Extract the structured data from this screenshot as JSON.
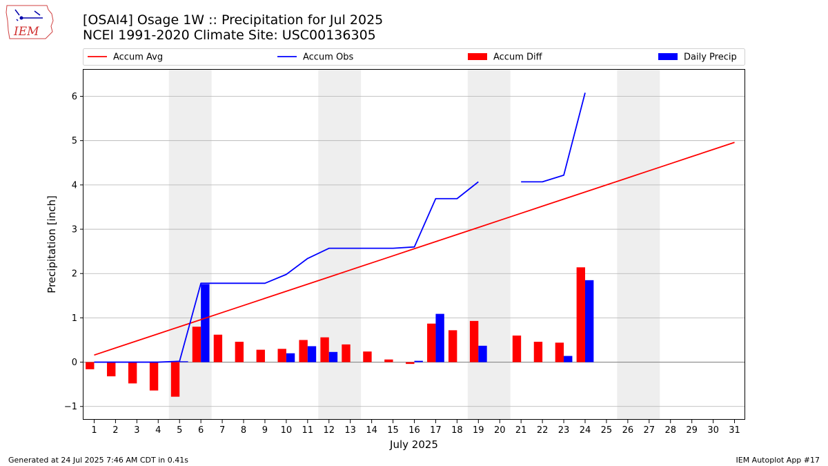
{
  "header": {
    "logo_text": "IEM",
    "title_line1": "[OSAI4] Osage 1W :: Precipitation for Jul 2025",
    "title_line2": "NCEI 1991-2020 Climate Site: USC00136305"
  },
  "footer": {
    "left": "Generated at 24 Jul 2025 7:46 AM CDT in 0.41s",
    "right": "IEM Autoplot App #17"
  },
  "colors": {
    "avg": "#ff0000",
    "obs": "#0000ff",
    "diff": "#ff0000",
    "daily": "#0000ff",
    "weekend_shade": "#eeeeee",
    "grid": "#b0b0b0"
  },
  "chart_data": {
    "type": "bar",
    "xlabel": "July 2025",
    "ylabel": "Precipitation [inch]",
    "xlim": [
      0.5,
      31.5
    ],
    "ylim": [
      -1.3,
      6.6
    ],
    "yticks": [
      -1,
      0,
      1,
      2,
      3,
      4,
      5,
      6
    ],
    "x": [
      1,
      2,
      3,
      4,
      5,
      6,
      7,
      8,
      9,
      10,
      11,
      12,
      13,
      14,
      15,
      16,
      17,
      18,
      19,
      20,
      21,
      22,
      23,
      24,
      25,
      26,
      27,
      28,
      29,
      30,
      31
    ],
    "xtick_labels": [
      "1",
      "2",
      "3",
      "4",
      "5",
      "6",
      "7",
      "8",
      "9",
      "10",
      "11",
      "12",
      "13",
      "14",
      "15",
      "16",
      "17",
      "18",
      "19",
      "20",
      "21",
      "22",
      "23",
      "24",
      "25",
      "26",
      "27",
      "28",
      "29",
      "30",
      "31"
    ],
    "grid": "horizontal",
    "legend_position": "top",
    "shaded_days": [
      [
        5,
        6
      ],
      [
        12,
        13
      ],
      [
        19,
        20
      ],
      [
        26,
        27
      ]
    ],
    "series": [
      {
        "name": "Accum Avg",
        "kind": "line",
        "values": [
          0.16,
          0.32,
          0.48,
          0.64,
          0.8,
          0.96,
          1.12,
          1.28,
          1.44,
          1.6,
          1.76,
          1.92,
          2.08,
          2.24,
          2.4,
          2.56,
          2.72,
          2.88,
          3.04,
          3.2,
          3.36,
          3.52,
          3.68,
          3.84,
          4.0,
          4.16,
          4.32,
          4.48,
          4.64,
          4.8,
          4.96
        ]
      },
      {
        "name": "Accum Obs",
        "kind": "line",
        "values": [
          0.0,
          0.0,
          0.0,
          0.0,
          0.02,
          1.78,
          1.78,
          1.78,
          1.78,
          1.98,
          2.34,
          2.57,
          2.57,
          2.57,
          2.57,
          2.6,
          3.69,
          3.69,
          4.07,
          null,
          4.07,
          4.07,
          4.22,
          6.08,
          null,
          null,
          null,
          null,
          null,
          null,
          null
        ]
      },
      {
        "name": "Accum Diff",
        "kind": "bar",
        "values": [
          -0.16,
          -0.32,
          -0.48,
          -0.64,
          -0.78,
          0.8,
          0.62,
          0.46,
          0.28,
          0.3,
          0.5,
          0.56,
          0.4,
          0.24,
          0.06,
          -0.04,
          0.87,
          0.72,
          0.93,
          null,
          0.6,
          0.46,
          0.44,
          2.14,
          null,
          null,
          null,
          null,
          null,
          null,
          null
        ]
      },
      {
        "name": "Daily Precip",
        "kind": "bar",
        "values": [
          0,
          0,
          0,
          0,
          0.02,
          1.76,
          0,
          0,
          0,
          0.2,
          0.36,
          0.23,
          0,
          0,
          0,
          0.03,
          1.09,
          0,
          0.37,
          0,
          0,
          0,
          0.14,
          1.85,
          null,
          null,
          null,
          null,
          null,
          null,
          null
        ]
      }
    ]
  }
}
